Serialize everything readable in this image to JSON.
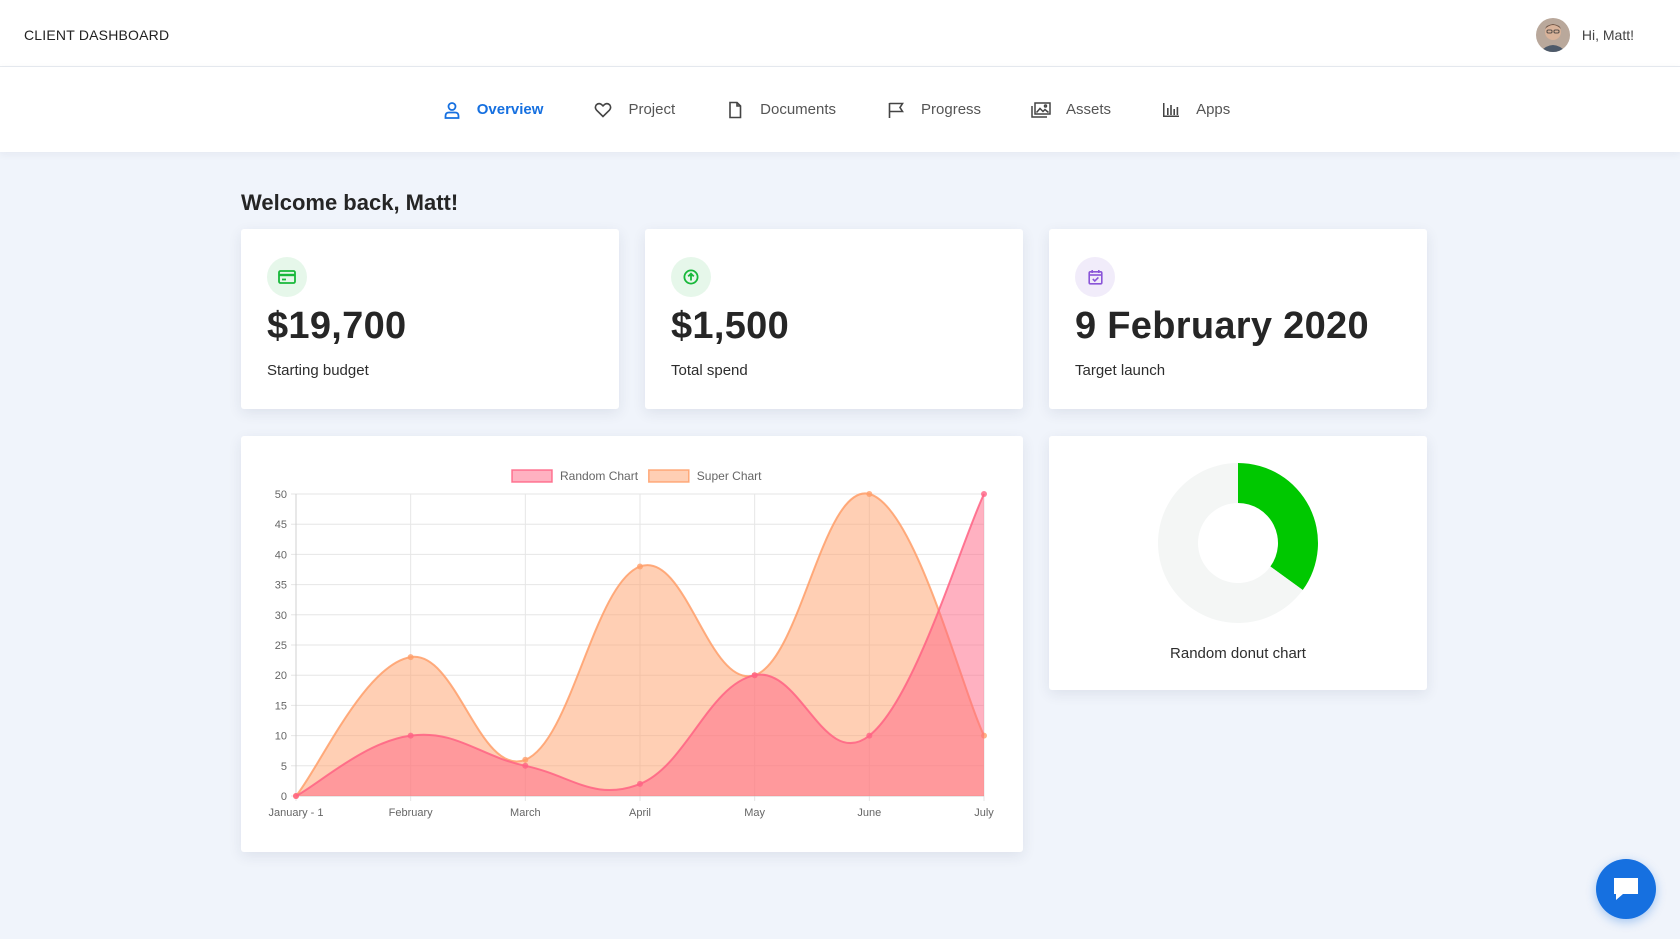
{
  "header": {
    "brand": "CLIENT DASHBOARD",
    "greeting": "Hi, Matt!"
  },
  "nav": {
    "items": [
      {
        "label": "Overview",
        "icon": "user-icon",
        "active": true
      },
      {
        "label": "Project",
        "icon": "heart-icon",
        "active": false
      },
      {
        "label": "Documents",
        "icon": "document-icon",
        "active": false
      },
      {
        "label": "Progress",
        "icon": "flag-icon",
        "active": false
      },
      {
        "label": "Assets",
        "icon": "images-icon",
        "active": false
      },
      {
        "label": "Apps",
        "icon": "bar-chart-icon",
        "active": false
      }
    ]
  },
  "welcome": "Welcome back, Matt!",
  "stats": [
    {
      "value": "$19,700",
      "label": "Starting budget",
      "icon": "credit-card-icon",
      "icon_color": "#18b83a",
      "icon_bg": "#e6f7ea"
    },
    {
      "value": "$1,500",
      "label": "Total spend",
      "icon": "arrow-up-circle-icon",
      "icon_color": "#18b83a",
      "icon_bg": "#e6f7ea"
    },
    {
      "value": "9 February 2020",
      "label": "Target launch",
      "icon": "calendar-check-icon",
      "icon_color": "#8a55d8",
      "icon_bg": "#f1ecfa"
    }
  ],
  "colors": {
    "accent": "#1670e0",
    "random_chart": "#ff6384",
    "super_chart": "#ff9f6a",
    "donut_fill": "#00c800",
    "donut_track": "#f4f6f5"
  },
  "chart_data": [
    {
      "type": "area",
      "categories": [
        "January - 1",
        "February",
        "March",
        "April",
        "May",
        "June",
        "July"
      ],
      "series": [
        {
          "name": "Random Chart",
          "values": [
            0,
            10,
            5,
            2,
            20,
            10,
            50
          ]
        },
        {
          "name": "Super Chart",
          "values": [
            0,
            23,
            6,
            38,
            20,
            50,
            10
          ]
        }
      ],
      "ylim": [
        0,
        50
      ],
      "yticks": [
        0,
        5,
        10,
        15,
        20,
        25,
        30,
        35,
        40,
        45,
        50
      ],
      "legend": "top",
      "grid": true
    },
    {
      "type": "pie",
      "variant": "donut",
      "title": "Random donut chart",
      "values": [
        35,
        65
      ]
    }
  ]
}
